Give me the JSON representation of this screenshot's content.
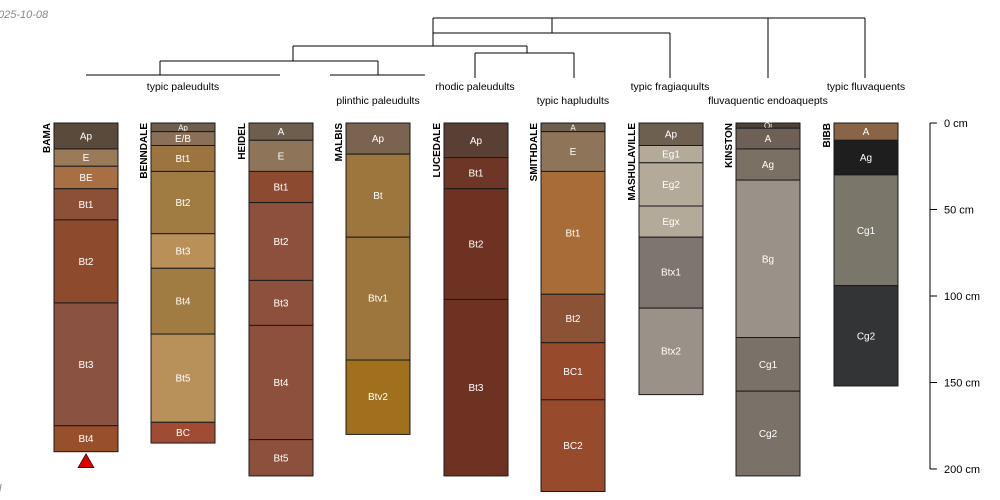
{
  "date_stamp": "025-10-08",
  "corner_mark": "l",
  "depth_axis": {
    "unit": "cm",
    "range": [
      0,
      200
    ],
    "ticks": [
      {
        "value": 0,
        "label": "0  cm"
      },
      {
        "value": 50,
        "label": "50  cm"
      },
      {
        "value": 100,
        "label": "100  cm"
      },
      {
        "value": 150,
        "label": "150  cm"
      },
      {
        "value": 200,
        "label": "200  cm"
      }
    ]
  },
  "taxa_labels": [
    "typic paleudults",
    "plinthic paleudults",
    "rhodic paleudults",
    "typic hapludults",
    "typic fragiaquults",
    "fluvaquentic endoaquepts",
    "typic fluvaquents"
  ],
  "profiles": [
    {
      "name": "BAMA",
      "marker": true,
      "horizons": [
        {
          "name": "Ap",
          "top": 0,
          "bottom": 15,
          "color": "#5a4a3c"
        },
        {
          "name": "E",
          "top": 15,
          "bottom": 25,
          "color": "#9a7a58"
        },
        {
          "name": "BE",
          "top": 25,
          "bottom": 38,
          "color": "#a86e44"
        },
        {
          "name": "Bt1",
          "top": 38,
          "bottom": 56,
          "color": "#8c5036"
        },
        {
          "name": "Bt2",
          "top": 56,
          "bottom": 104,
          "color": "#8e4a2c"
        },
        {
          "name": "Bt3",
          "top": 104,
          "bottom": 175,
          "color": "#8a5240"
        },
        {
          "name": "Bt4",
          "top": 175,
          "bottom": 190,
          "color": "#98502c"
        }
      ]
    },
    {
      "name": "BENNDALE",
      "marker": false,
      "horizons": [
        {
          "name": "Ap",
          "top": 0,
          "bottom": 5,
          "color": "#6e5e4e"
        },
        {
          "name": "E/B",
          "top": 5,
          "bottom": 13,
          "color": "#8a7058"
        },
        {
          "name": "Bt1",
          "top": 13,
          "bottom": 28,
          "color": "#9c7440"
        },
        {
          "name": "Bt2",
          "top": 28,
          "bottom": 64,
          "color": "#a07c42"
        },
        {
          "name": "Bt3",
          "top": 64,
          "bottom": 84,
          "color": "#b89058"
        },
        {
          "name": "Bt4",
          "top": 84,
          "bottom": 122,
          "color": "#a07c42"
        },
        {
          "name": "Bt5",
          "top": 122,
          "bottom": 173,
          "color": "#b8905a"
        },
        {
          "name": "BC",
          "top": 173,
          "bottom": 185,
          "color": "#a04c34"
        }
      ]
    },
    {
      "name": "HEIDEL",
      "marker": false,
      "horizons": [
        {
          "name": "A",
          "top": 0,
          "bottom": 10,
          "color": "#6e5e4e"
        },
        {
          "name": "E",
          "top": 10,
          "bottom": 28,
          "color": "#8e7458"
        },
        {
          "name": "Bt1",
          "top": 28,
          "bottom": 46,
          "color": "#8c4a30"
        },
        {
          "name": "Bt2",
          "top": 46,
          "bottom": 91,
          "color": "#8c503c"
        },
        {
          "name": "Bt3",
          "top": 91,
          "bottom": 117,
          "color": "#8c503c"
        },
        {
          "name": "Bt4",
          "top": 117,
          "bottom": 183,
          "color": "#8c503c"
        },
        {
          "name": "Bt5",
          "top": 183,
          "bottom": 204,
          "color": "#8c503c"
        }
      ]
    },
    {
      "name": "MALBIS",
      "marker": false,
      "horizons": [
        {
          "name": "Ap",
          "top": 0,
          "bottom": 18,
          "color": "#7a6450"
        },
        {
          "name": "Bt",
          "top": 18,
          "bottom": 66,
          "color": "#9c763c"
        },
        {
          "name": "Btv1",
          "top": 66,
          "bottom": 137,
          "color": "#9c763c"
        },
        {
          "name": "Btv2",
          "top": 137,
          "bottom": 180,
          "color": "#a0701c"
        }
      ]
    },
    {
      "name": "LUCEDALE",
      "marker": false,
      "horizons": [
        {
          "name": "Ap",
          "top": 0,
          "bottom": 20,
          "color": "#5a4034"
        },
        {
          "name": "Bt1",
          "top": 20,
          "bottom": 38,
          "color": "#6e3626"
        },
        {
          "name": "Bt2",
          "top": 38,
          "bottom": 102,
          "color": "#6e3222"
        },
        {
          "name": "Bt3",
          "top": 102,
          "bottom": 204,
          "color": "#6e3222"
        }
      ]
    },
    {
      "name": "SMITHDALE",
      "marker": false,
      "horizons": [
        {
          "name": "A",
          "top": 0,
          "bottom": 5,
          "color": "#6e5e4e"
        },
        {
          "name": "E",
          "top": 5,
          "bottom": 28,
          "color": "#8e7458"
        },
        {
          "name": "Bt1",
          "top": 28,
          "bottom": 99,
          "color": "#a86c38"
        },
        {
          "name": "Bt2",
          "top": 99,
          "bottom": 127,
          "color": "#8c5236"
        },
        {
          "name": "BC1",
          "top": 127,
          "bottom": 160,
          "color": "#984a2c"
        },
        {
          "name": "BC2",
          "top": 160,
          "bottom": 213,
          "color": "#984a2c"
        }
      ]
    },
    {
      "name": "MASHULAVILLE",
      "marker": false,
      "horizons": [
        {
          "name": "Ap",
          "top": 0,
          "bottom": 13,
          "color": "#6e6050"
        },
        {
          "name": "Eg1",
          "top": 13,
          "bottom": 23,
          "color": "#b4aa9a"
        },
        {
          "name": "Eg2",
          "top": 23,
          "bottom": 48,
          "color": "#b4aa9a"
        },
        {
          "name": "Egx",
          "top": 48,
          "bottom": 66,
          "color": "#b4aa9a"
        },
        {
          "name": "Btx1",
          "top": 66,
          "bottom": 107,
          "color": "#7e766e"
        },
        {
          "name": "Btx2",
          "top": 107,
          "bottom": 157,
          "color": "#9a9288"
        }
      ]
    },
    {
      "name": "KINSTON",
      "marker": false,
      "horizons": [
        {
          "name": "Oi",
          "top": 0,
          "bottom": 3,
          "color": "#4e4238"
        },
        {
          "name": "A",
          "top": 3,
          "bottom": 15,
          "color": "#6e6056"
        },
        {
          "name": "Ag",
          "top": 15,
          "bottom": 33,
          "color": "#7a7064"
        },
        {
          "name": "Bg",
          "top": 33,
          "bottom": 124,
          "color": "#9a9288"
        },
        {
          "name": "Cg1",
          "top": 124,
          "bottom": 155,
          "color": "#7a7268"
        },
        {
          "name": "Cg2",
          "top": 155,
          "bottom": 204,
          "color": "#7a7268"
        }
      ]
    },
    {
      "name": "BIBB",
      "marker": false,
      "horizons": [
        {
          "name": "A",
          "top": 0,
          "bottom": 10,
          "color": "#8a6446"
        },
        {
          "name": "Ag",
          "top": 10,
          "bottom": 30,
          "color": "#1e1e1e"
        },
        {
          "name": "Cg1",
          "top": 30,
          "bottom": 94,
          "color": "#7a766a"
        },
        {
          "name": "Cg2",
          "top": 94,
          "bottom": 152,
          "color": "#333436"
        }
      ]
    }
  ]
}
